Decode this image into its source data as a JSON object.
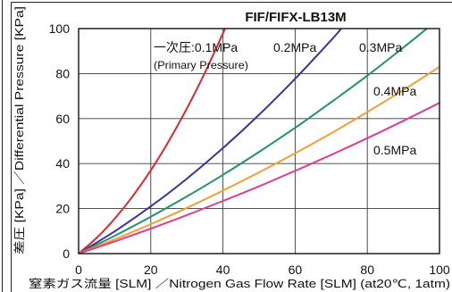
{
  "chart_data": {
    "type": "line",
    "title": "FIF/FIFX-LB13M",
    "xlabel": "窒素ガス流量 [SLM] ／Nitrogen Gas Flow Rate [SLM] (at20℃, 1atm)",
    "ylabel": "差圧 [KPa] ／Differential Pressure [KPa]",
    "xlim": [
      0,
      100
    ],
    "ylim": [
      0,
      100
    ],
    "xticks": [
      0,
      20,
      40,
      60,
      80,
      100
    ],
    "yticks": [
      0,
      20,
      40,
      60,
      80,
      100
    ],
    "grid": true,
    "legend": "inline",
    "pressure_caption": {
      "ja": "一次圧:",
      "en": "(Primary Pressure)"
    },
    "series": [
      {
        "name": "0.1MPa",
        "color": "#e6242b",
        "x": [
          0,
          5,
          10,
          15,
          20,
          25,
          30,
          35,
          40.6
        ],
        "y": [
          0,
          7.0,
          15.5,
          25.5,
          37.0,
          50.0,
          64.5,
          80.4,
          100
        ]
      },
      {
        "name": "0.2MPa",
        "color": "#34369e",
        "x": [
          0,
          10,
          20,
          30,
          40,
          50,
          60,
          70,
          72.8
        ],
        "y": [
          0,
          9.9,
          21.0,
          33.3,
          46.9,
          61.7,
          77.7,
          94.9,
          100
        ]
      },
      {
        "name": "0.3MPa",
        "color": "#1d946a",
        "x": [
          0,
          10,
          20,
          30,
          40,
          50,
          60,
          70,
          80,
          90,
          96.5
        ],
        "y": [
          0,
          7.9,
          16.4,
          25.4,
          35.0,
          45.2,
          55.9,
          67.3,
          79.1,
          91.6,
          100
        ]
      },
      {
        "name": "0.4MPa",
        "color": "#f59e32",
        "x": [
          0,
          10,
          20,
          30,
          40,
          50,
          60,
          70,
          80,
          90,
          100
        ],
        "y": [
          0,
          6.3,
          13.1,
          20.3,
          28.0,
          36.1,
          44.6,
          53.5,
          62.9,
          72.7,
          83.0
        ]
      },
      {
        "name": "0.5MPa",
        "color": "#e63a8f",
        "x": [
          0,
          10,
          20,
          30,
          40,
          50,
          60,
          70,
          80,
          90,
          100
        ],
        "y": [
          0,
          5.4,
          11.1,
          17.1,
          23.4,
          29.9,
          36.8,
          43.9,
          51.3,
          59.0,
          67.0
        ]
      }
    ]
  }
}
